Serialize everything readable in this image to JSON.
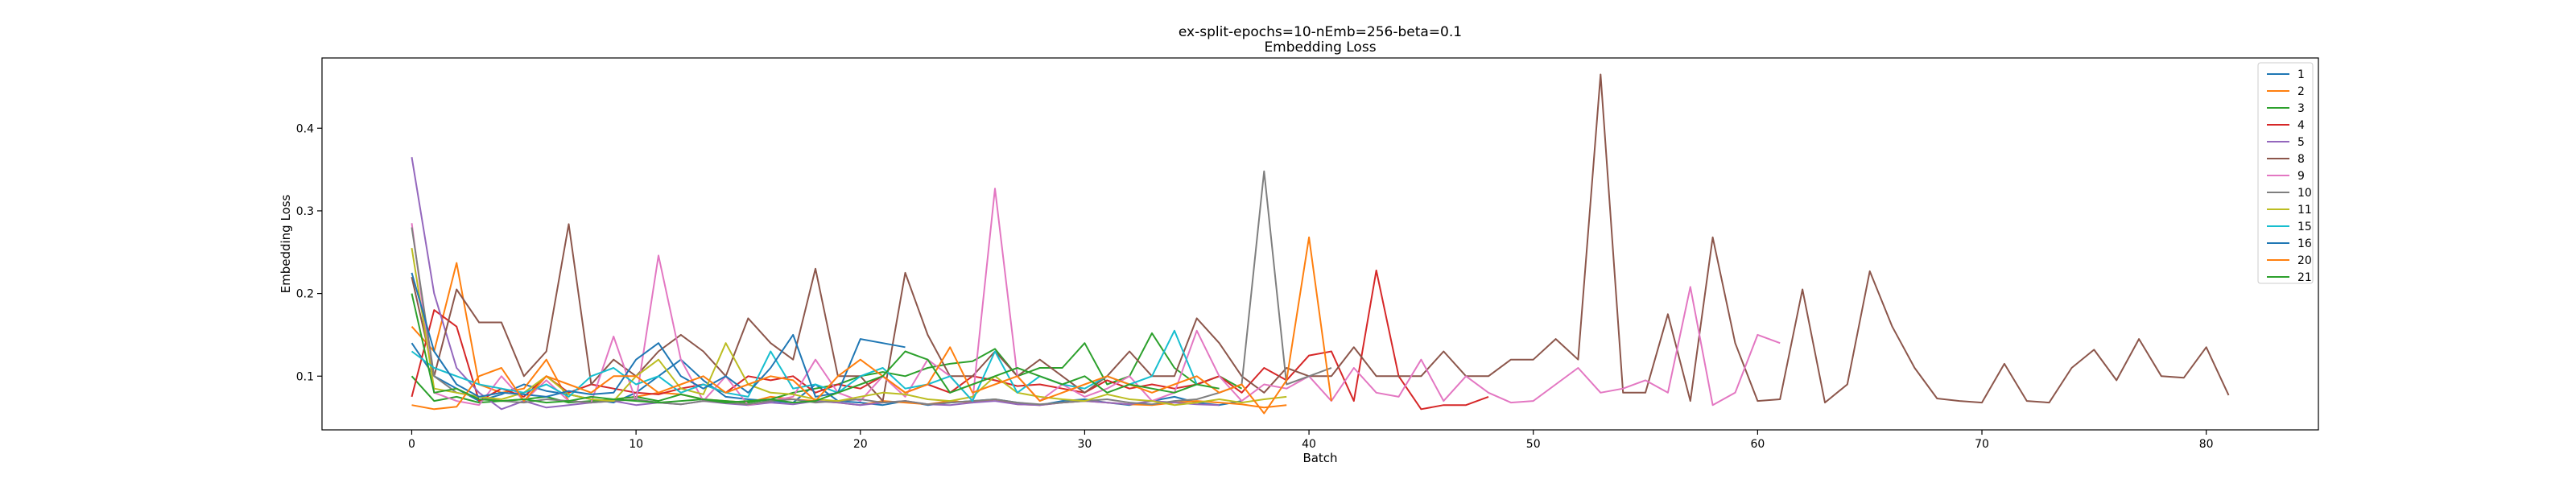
{
  "chart_data": {
    "type": "line",
    "title": "ex-split-epochs=10-nEmb=256-beta=0.1",
    "subtitle": "Embedding Loss",
    "xlabel": "Batch",
    "ylabel": "Embedding Loss",
    "xlim": [
      -4,
      85
    ],
    "ylim": [
      0.035,
      0.485
    ],
    "xticks": [
      0,
      10,
      20,
      30,
      40,
      50,
      60,
      70,
      80
    ],
    "yticks": [
      0.1,
      0.2,
      0.3,
      0.4
    ],
    "grid": false,
    "legend_position": "top-right",
    "series": [
      {
        "name": "1",
        "color": "#1f77b4",
        "values": [
          0.14,
          0.1,
          0.085,
          0.07,
          0.078,
          0.09,
          0.082,
          0.078,
          0.072,
          0.068,
          0.08,
          0.1,
          0.12,
          0.095,
          0.075,
          0.072,
          0.07,
          0.068,
          0.09,
          0.07,
          0.068,
          0.065,
          0.07,
          0.065,
          0.068,
          0.07,
          0.072,
          0.068,
          0.065,
          0.07,
          0.072,
          0.068,
          0.065,
          0.07,
          0.075,
          0.068,
          0.065,
          0.07
        ]
      },
      {
        "name": "2",
        "color": "#ff7f0e",
        "values": [
          0.16,
          0.13,
          0.237,
          0.09,
          0.08,
          0.085,
          0.12,
          0.07,
          0.068,
          0.072,
          0.075,
          0.08,
          0.078,
          0.072,
          0.07,
          0.068,
          0.075,
          0.072,
          0.07,
          0.068,
          0.065,
          0.07,
          0.068,
          0.066,
          0.07,
          0.068,
          0.072,
          0.066,
          0.065,
          0.068,
          0.07,
          0.068,
          0.066,
          0.065,
          0.068,
          0.07,
          0.068,
          0.066,
          0.062,
          0.065
        ]
      },
      {
        "name": "3",
        "color": "#2ca02c",
        "values": [
          0.1,
          0.07,
          0.075,
          0.068,
          0.07,
          0.072,
          0.075,
          0.068,
          0.07,
          0.072,
          0.075,
          0.07,
          0.078,
          0.072,
          0.07,
          0.068,
          0.072,
          0.08,
          0.085,
          0.09,
          0.1,
          0.105,
          0.1,
          0.11,
          0.115,
          0.118,
          0.133,
          0.1,
          0.11,
          0.11,
          0.14,
          0.09,
          0.1,
          0.152,
          0.11,
          0.09,
          0.1,
          0.085
        ]
      },
      {
        "name": "4",
        "color": "#d62728",
        "values": [
          0.075,
          0.18,
          0.16,
          0.07,
          0.085,
          0.075,
          0.1,
          0.08,
          0.09,
          0.085,
          0.08,
          0.078,
          0.085,
          0.09,
          0.08,
          0.1,
          0.095,
          0.1,
          0.08,
          0.09,
          0.085,
          0.1,
          0.08,
          0.09,
          0.08,
          0.1,
          0.095,
          0.088,
          0.09,
          0.085,
          0.08,
          0.095,
          0.085,
          0.09,
          0.085,
          0.09,
          0.1,
          0.08,
          0.11,
          0.095,
          0.125,
          0.13,
          0.07,
          0.228,
          0.1,
          0.06,
          0.065,
          0.065,
          0.075
        ]
      },
      {
        "name": "5",
        "color": "#9467bd",
        "values": [
          0.365,
          0.2,
          0.11,
          0.08,
          0.06,
          0.07,
          0.062,
          0.065,
          0.068,
          0.07,
          0.065,
          0.068,
          0.066,
          0.07,
          0.067,
          0.065,
          0.068,
          0.066,
          0.07,
          0.068,
          0.065,
          0.068,
          0.07,
          0.066,
          0.065,
          0.068,
          0.07,
          0.066,
          0.065,
          0.068,
          0.07,
          0.068,
          0.066,
          0.07,
          0.068,
          0.066,
          0.065
        ]
      },
      {
        "name": "8",
        "color": "#8c564b",
        "values": [
          0.22,
          0.1,
          0.205,
          0.165,
          0.165,
          0.1,
          0.13,
          0.284,
          0.09,
          0.12,
          0.1,
          0.13,
          0.15,
          0.13,
          0.1,
          0.17,
          0.14,
          0.12,
          0.23,
          0.1,
          0.1,
          0.07,
          0.225,
          0.15,
          0.1,
          0.1,
          0.13,
          0.1,
          0.12,
          0.1,
          0.08,
          0.1,
          0.13,
          0.1,
          0.1,
          0.17,
          0.14,
          0.1,
          0.08,
          0.11,
          0.1,
          0.1,
          0.135,
          0.1,
          0.1,
          0.1,
          0.13,
          0.1,
          0.1,
          0.12,
          0.12,
          0.145,
          0.12,
          0.465,
          0.08,
          0.08,
          0.175,
          0.07,
          0.268,
          0.14,
          0.07,
          0.072,
          0.205,
          0.068,
          0.09,
          0.227,
          0.16,
          0.11,
          0.073,
          0.07,
          0.068,
          0.115,
          0.07,
          0.068,
          0.11,
          0.132,
          0.095,
          0.145,
          0.1,
          0.098,
          0.135,
          0.077
        ]
      },
      {
        "name": "9",
        "color": "#e377c2",
        "values": [
          0.285,
          0.08,
          0.07,
          0.065,
          0.1,
          0.07,
          0.095,
          0.07,
          0.068,
          0.148,
          0.07,
          0.246,
          0.12,
          0.07,
          0.1,
          0.065,
          0.07,
          0.075,
          0.12,
          0.08,
          0.07,
          0.1,
          0.075,
          0.12,
          0.1,
          0.07,
          0.327,
          0.1,
          0.07,
          0.09,
          0.075,
          0.085,
          0.1,
          0.07,
          0.08,
          0.155,
          0.1,
          0.07,
          0.09,
          0.085,
          0.1,
          0.07,
          0.11,
          0.08,
          0.075,
          0.12,
          0.07,
          0.1,
          0.08,
          0.068,
          0.07,
          0.09,
          0.11,
          0.08,
          0.085,
          0.095,
          0.08,
          0.208,
          0.065,
          0.08,
          0.15,
          0.14
        ]
      },
      {
        "name": "10",
        "color": "#7f7f7f",
        "values": [
          0.28,
          0.1,
          0.08,
          0.075,
          0.07,
          0.068,
          0.072,
          0.07,
          0.068,
          0.07,
          0.072,
          0.068,
          0.066,
          0.07,
          0.068,
          0.066,
          0.07,
          0.072,
          0.068,
          0.07,
          0.072,
          0.068,
          0.07,
          0.066,
          0.068,
          0.07,
          0.072,
          0.068,
          0.066,
          0.068,
          0.07,
          0.072,
          0.068,
          0.066,
          0.07,
          0.072,
          0.08,
          0.09,
          0.348,
          0.09,
          0.1,
          0.11
        ]
      },
      {
        "name": "11",
        "color": "#bcbd22",
        "values": [
          0.255,
          0.085,
          0.08,
          0.075,
          0.072,
          0.08,
          0.1,
          0.078,
          0.072,
          0.07,
          0.1,
          0.12,
          0.085,
          0.078,
          0.14,
          0.09,
          0.08,
          0.078,
          0.072,
          0.07,
          0.075,
          0.08,
          0.078,
          0.072,
          0.07,
          0.075,
          0.1,
          0.08,
          0.075,
          0.072,
          0.07,
          0.078,
          0.072,
          0.07,
          0.065,
          0.068,
          0.072,
          0.068,
          0.072,
          0.075
        ]
      },
      {
        "name": "15",
        "color": "#17becf",
        "values": [
          0.13,
          0.11,
          0.1,
          0.09,
          0.085,
          0.08,
          0.09,
          0.075,
          0.1,
          0.11,
          0.09,
          0.1,
          0.08,
          0.09,
          0.08,
          0.075,
          0.13,
          0.085,
          0.09,
          0.08,
          0.1,
          0.11,
          0.085,
          0.09,
          0.1,
          0.07,
          0.13,
          0.08,
          0.1,
          0.09,
          0.085,
          0.1,
          0.09,
          0.1,
          0.155,
          0.09
        ]
      },
      {
        "name": "16",
        "color": "#1f77b4",
        "values": [
          0.225,
          0.13,
          0.09,
          0.075,
          0.08,
          0.078,
          0.075,
          0.082,
          0.078,
          0.08,
          0.12,
          0.14,
          0.1,
          0.085,
          0.1,
          0.08,
          0.11,
          0.15,
          0.075,
          0.08,
          0.145,
          0.14,
          0.135
        ]
      },
      {
        "name": "20",
        "color": "#ff7f0e",
        "values": [
          0.065,
          0.06,
          0.063,
          0.1,
          0.11,
          0.07,
          0.1,
          0.09,
          0.08,
          0.1,
          0.1,
          0.08,
          0.09,
          0.1,
          0.08,
          0.09,
          0.1,
          0.095,
          0.07,
          0.1,
          0.12,
          0.1,
          0.08,
          0.09,
          0.135,
          0.08,
          0.09,
          0.1,
          0.07,
          0.08,
          0.09,
          0.1,
          0.09,
          0.08,
          0.09,
          0.1,
          0.08,
          0.09,
          0.055,
          0.095,
          0.268,
          0.07
        ]
      },
      {
        "name": "21",
        "color": "#2ca02c",
        "values": [
          0.2,
          0.08,
          0.085,
          0.072,
          0.07,
          0.072,
          0.068,
          0.07,
          0.075,
          0.072,
          0.07,
          0.068,
          0.07,
          0.072,
          0.068,
          0.07,
          0.072,
          0.068,
          0.07,
          0.08,
          0.09,
          0.1,
          0.13,
          0.12,
          0.08,
          0.09,
          0.1,
          0.11,
          0.1,
          0.09,
          0.1,
          0.08,
          0.09,
          0.085,
          0.08,
          0.09,
          0.085
        ]
      }
    ]
  }
}
